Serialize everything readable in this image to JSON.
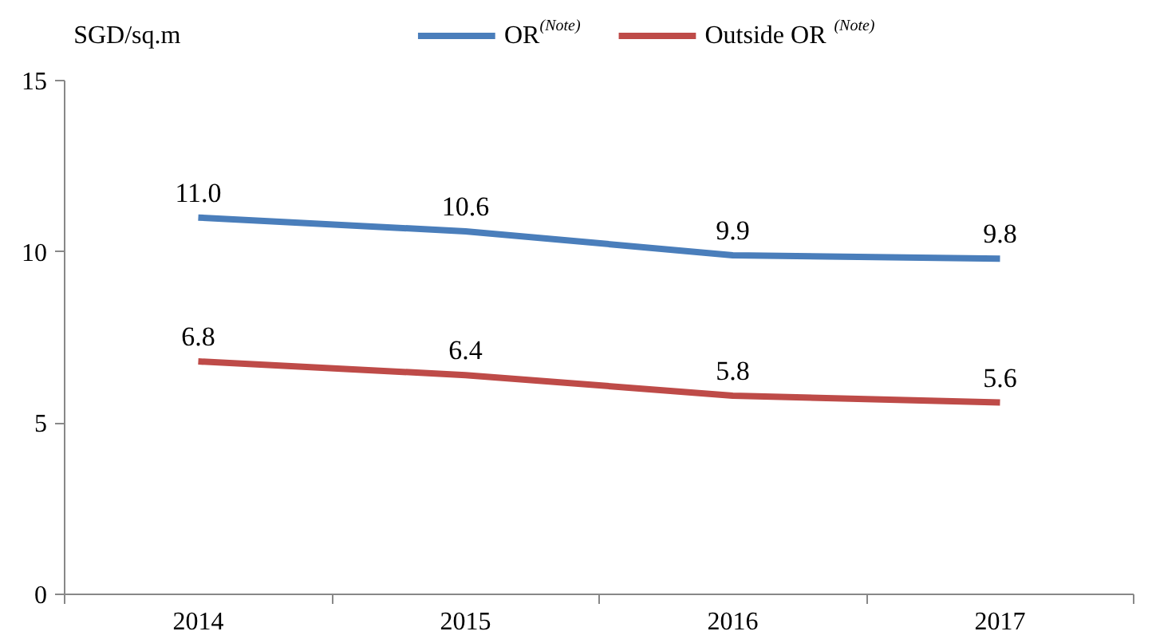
{
  "chart_data": {
    "type": "line",
    "ylabel": "SGD/sq.m",
    "categories": [
      "2014",
      "2015",
      "2016",
      "2017"
    ],
    "series": [
      {
        "name": "OR$^{(Note)}$",
        "color": "#4a7ebb",
        "values": [
          11.0,
          10.6,
          9.9,
          9.8
        ],
        "value_labels": [
          "11.0",
          "10.6",
          "9.9",
          "9.8"
        ]
      },
      {
        "name": "Outside OR$^{(Note)}$",
        "color": "#be4b48",
        "values": [
          6.8,
          6.4,
          5.8,
          5.6
        ],
        "value_labels": [
          "6.8",
          "6.4",
          "5.8",
          "5.6"
        ]
      }
    ],
    "ylim": [
      0,
      15
    ],
    "yticks": [
      0,
      5,
      10,
      15
    ],
    "grid": false,
    "legend": "top",
    "marker": "none",
    "line_style": "solid"
  }
}
